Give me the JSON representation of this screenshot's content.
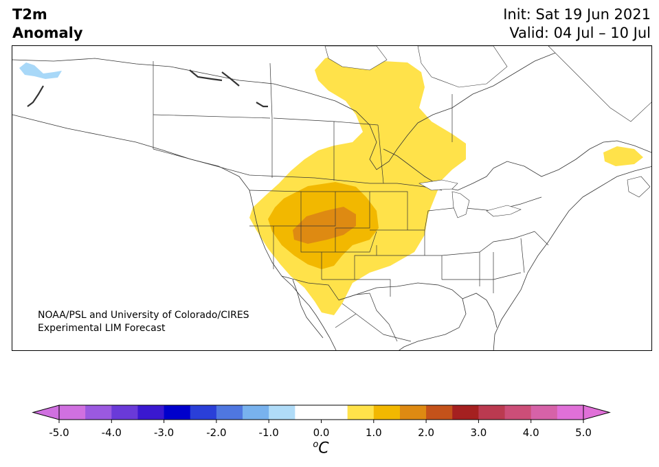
{
  "title": {
    "line1": "T2m",
    "line2": "Anomaly"
  },
  "init": {
    "label": "Init: Sat 19 Jun 2021"
  },
  "valid": {
    "label": "Valid: 04 Jul – 10 Jul"
  },
  "credit": {
    "line1": "NOAA/PSL and University of Colorado/CIRES",
    "line2": "Experimental LIM Forecast"
  },
  "colorbar": {
    "unit_sup": "o",
    "unit_main": "C",
    "ticks": [
      "-5.0",
      "-4.0",
      "-3.0",
      "-2.0",
      "-1.0",
      "0.0",
      "1.0",
      "2.0",
      "3.0",
      "4.0",
      "5.0"
    ],
    "tick_values": [
      -5,
      -4,
      -3,
      -2,
      -1,
      0,
      1,
      2,
      3,
      4,
      5
    ],
    "min": -5.0,
    "max": 5.0,
    "step": 0.5,
    "under_color": "#d070e0",
    "over_color": "#e070d8",
    "colors": [
      "#d070e0",
      "#9b59e0",
      "#6a3ad8",
      "#3a18d0",
      "#0000cc",
      "#2a3fd8",
      "#4f77e0",
      "#78b2ee",
      "#b0dcf8",
      "#ffffff",
      "#ffffff",
      "#ffe24a",
      "#f2b800",
      "#de8a12",
      "#c4521a",
      "#a52020",
      "#bb3a50",
      "#cc4e78",
      "#d662a8",
      "#e070d8"
    ]
  },
  "map": {
    "region": "North America",
    "anomaly_colors": {
      "light_warm": "#ffe24a",
      "warm": "#f2b800",
      "warmer": "#de8a12",
      "cool_light": "#a8d8f8"
    }
  }
}
